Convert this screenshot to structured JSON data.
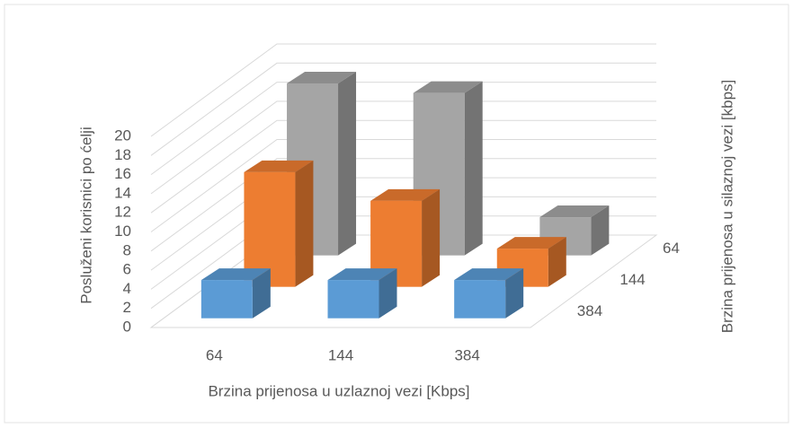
{
  "chart_data": {
    "type": "bar3d",
    "y_label": "Posluženi korisnici po ćelji",
    "x_label": "Brzina prijenosa u uzlaznoj vezi [Kbps]",
    "z_label": "Brzina prijenosa u silaznoj vezi [kbps]",
    "categories": [
      "64",
      "144",
      "384"
    ],
    "series": [
      {
        "name": "64",
        "color": "#a5a5a5",
        "values": [
          18,
          17,
          4
        ]
      },
      {
        "name": "144",
        "color": "#ed7d31",
        "values": [
          12,
          9,
          4
        ]
      },
      {
        "name": "384",
        "color": "#5b9bd5",
        "values": [
          4,
          4,
          4
        ]
      }
    ],
    "ylim": [
      0,
      20
    ],
    "yticks": [
      0,
      2,
      4,
      6,
      8,
      10,
      12,
      14,
      16,
      18,
      20
    ],
    "grid": true
  }
}
